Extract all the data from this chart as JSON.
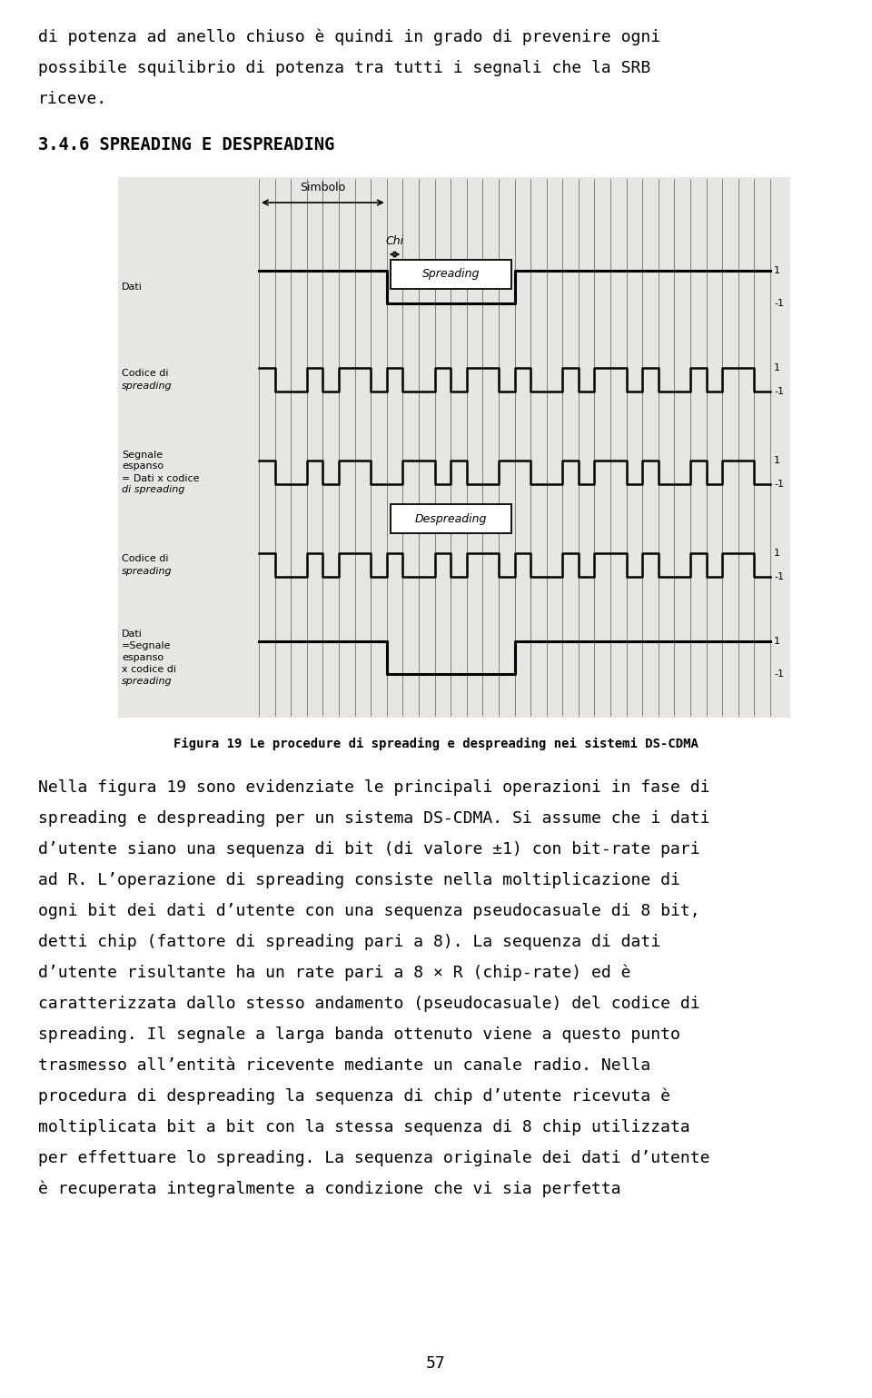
{
  "page_background": "#ffffff",
  "top_text_lines": [
    "di potenza ad anello chiuso è quindi in grado di prevenire ogni",
    "possibile squilibrio di potenza tra tutti i segnali che la SRB",
    "riceve."
  ],
  "section_title": "3.4.6 SPREADING E DESPREADING",
  "figure_caption": "Figura 19 Le procedure di spreading e despreading nei sistemi DS-CDMA",
  "body_text_lines": [
    "Nella figura 19 sono evidenziate le principali operazioni in fase di",
    "spreading e despreading per un sistema DS-CDMA. Si assume che i dati",
    "d’utente siano una sequenza di bit (di valore ±1) con bit-rate pari",
    "ad R. L’operazione di spreading consiste nella moltiplicazione di",
    "ogni bit dei dati d’utente con una sequenza pseudocasuale di 8 bit,",
    "detti chip (fattore di spreading pari a 8). La sequenza di dati",
    "d’utente risultante ha un rate pari a 8 × R (chip-rate) ed è",
    "caratterizzata dallo stesso andamento (pseudocasuale) del codice di",
    "spreading. Il segnale a larga banda ottenuto viene a questo punto",
    "trasmesso all’entità ricevente mediante un canale radio. Nella",
    "procedura di despreading la sequenza di chip d’utente ricevuta è",
    "moltiplicata bit a bit con la stessa sequenza di 8 chip utilizzata",
    "per effettuare lo spreading. La sequenza originale dei dati d’utente",
    "è recuperata integralmente a condizione che vi sia perfetta"
  ],
  "page_number": "57",
  "data_bits": [
    1,
    -1,
    1,
    1
  ],
  "spread_code": [
    1,
    -1,
    -1,
    1,
    -1,
    1,
    1,
    -1
  ]
}
